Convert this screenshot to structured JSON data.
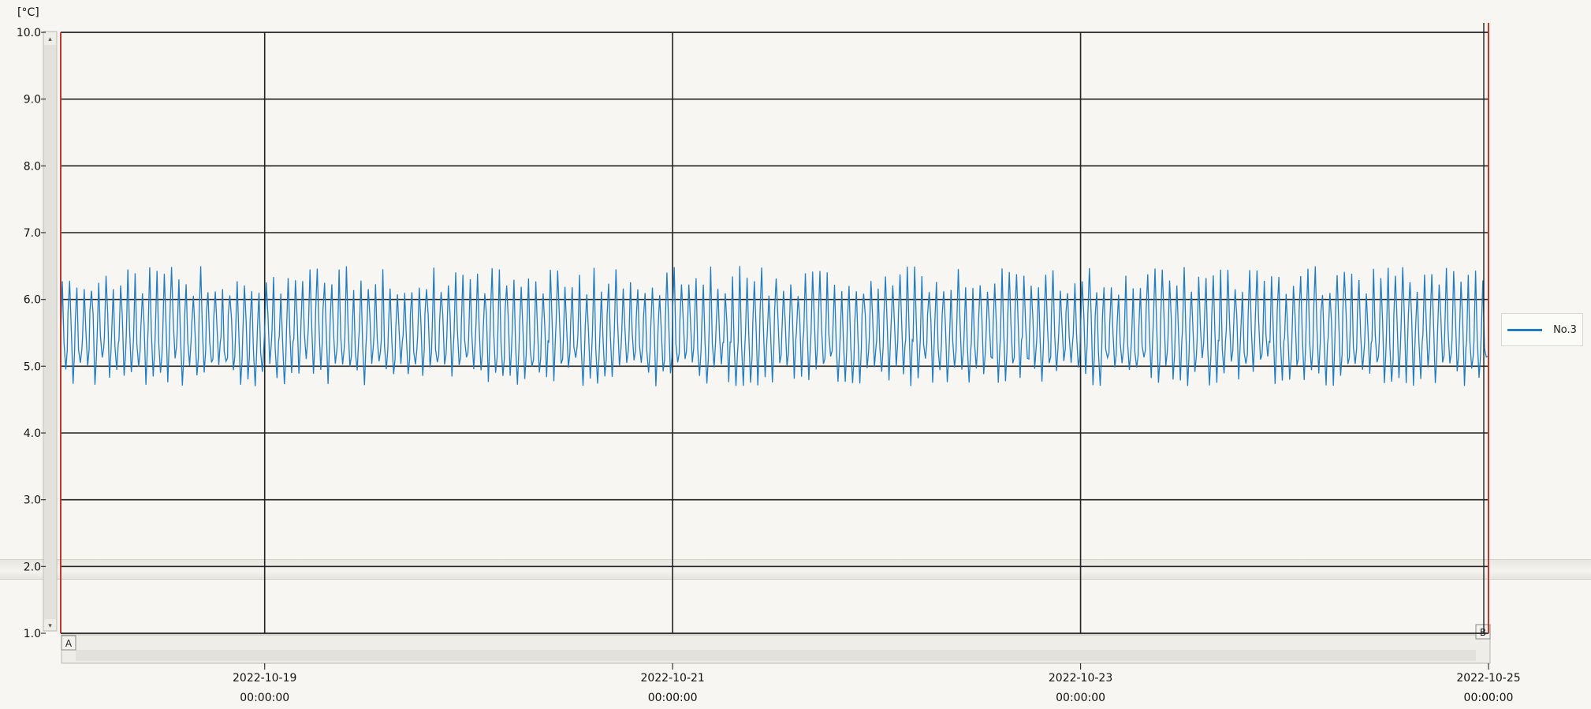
{
  "chart_data": {
    "type": "line",
    "unit_label": "[°C]",
    "ylim": [
      1.0,
      10.0
    ],
    "y_ticks": [
      "10.0",
      "9.0",
      "8.0",
      "7.0",
      "6.0",
      "5.0",
      "4.0",
      "3.0",
      "2.0",
      "1.0"
    ],
    "x_ticks": [
      {
        "date": "2022-10-19",
        "time": "00:00:00"
      },
      {
        "date": "2022-10-21",
        "time": "00:00:00"
      },
      {
        "date": "2022-10-23",
        "time": "00:00:00"
      },
      {
        "date": "2022-10-25",
        "time": "00:00:00"
      }
    ],
    "xlim": [
      "2022-10-18",
      "2022-10-25"
    ],
    "grid": true,
    "legend_position": "right",
    "cursor_labels": {
      "a": "A",
      "b": "B"
    },
    "series": [
      {
        "name": "No.3",
        "color": "#1f7dc4",
        "oscillation_min": 4.7,
        "oscillation_max": 6.5,
        "typical_low": 5.0,
        "typical_high": 6.3,
        "cycles": 196
      }
    ]
  },
  "colors": {
    "grid": "#222222",
    "cursor_line": "#c0392b",
    "background": "#f7f6f2"
  }
}
